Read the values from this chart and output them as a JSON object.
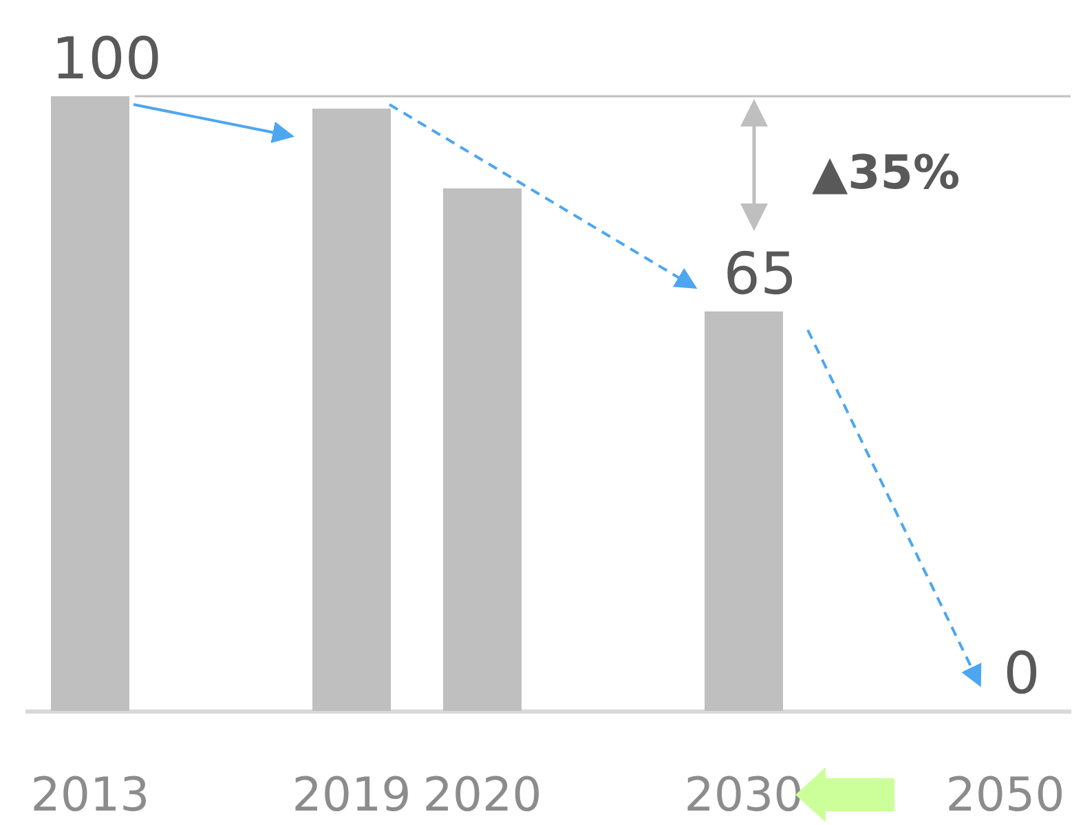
{
  "chart_data": {
    "type": "bar",
    "categories": [
      "2013",
      null,
      "2019",
      "2020",
      null,
      "2030",
      null,
      "2050"
    ],
    "values": [
      100,
      null,
      98,
      85,
      null,
      65,
      null,
      0
    ],
    "value_labels": [
      "100",
      null,
      null,
      null,
      null,
      "65",
      null,
      "0"
    ],
    "color": "#bfbfbf",
    "ylim": [
      0,
      100
    ],
    "ref_lines": [
      {
        "axis": "y",
        "value": 100,
        "color": "#bfbfbf"
      }
    ],
    "annotations": [
      "▲35%"
    ]
  }
}
